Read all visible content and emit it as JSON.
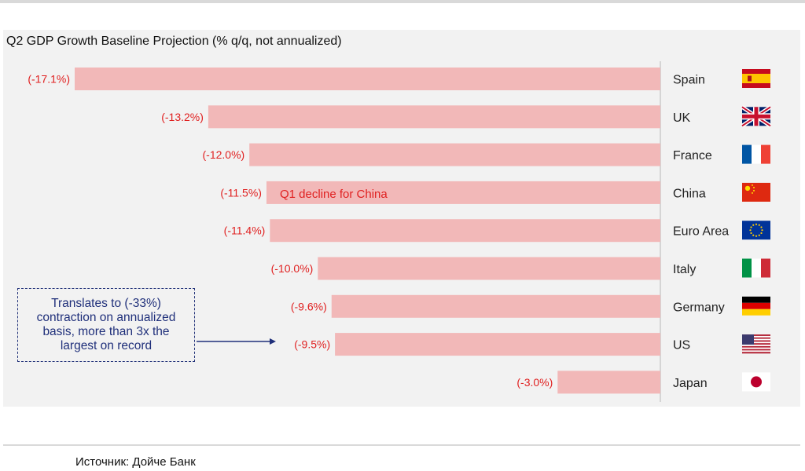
{
  "title": "Q2 GDP Growth Baseline Projection (% q/q, not annualized)",
  "source": "Источник: Дойче Банк",
  "annotations": {
    "china_note": "Q1 decline for China",
    "callout": "Translates to (-33%) contraction on annualized basis, more than 3x the largest on record"
  },
  "colors": {
    "bar": "#f2b8b8",
    "label": "#e02020",
    "callout": "#1f2f7a",
    "panel": "#f2f2f2"
  },
  "chart_data": {
    "type": "bar",
    "orientation": "horizontal",
    "title": "Q2 GDP Growth Baseline Projection (% q/q, not annualized)",
    "categories": [
      "Spain",
      "UK",
      "France",
      "China",
      "Euro Area",
      "Italy",
      "Germany",
      "US",
      "Japan"
    ],
    "values": [
      -17.1,
      -13.2,
      -12.0,
      -11.5,
      -11.4,
      -10.0,
      -9.6,
      -9.5,
      -3.0
    ],
    "value_labels": [
      "(-17.1%)",
      "(-13.2%)",
      "(-12.0%)",
      "(-11.5%)",
      "(-11.4%)",
      "(-10.0%)",
      "(-9.6%)",
      "(-9.5%)",
      "(-3.0%)"
    ],
    "flags": [
      "spain-flag",
      "uk-flag",
      "france-flag",
      "china-flag",
      "eu-flag",
      "italy-flag",
      "germany-flag",
      "us-flag",
      "japan-flag"
    ],
    "xlim": [
      -17.1,
      0
    ],
    "grid": false,
    "legend": "none"
  }
}
